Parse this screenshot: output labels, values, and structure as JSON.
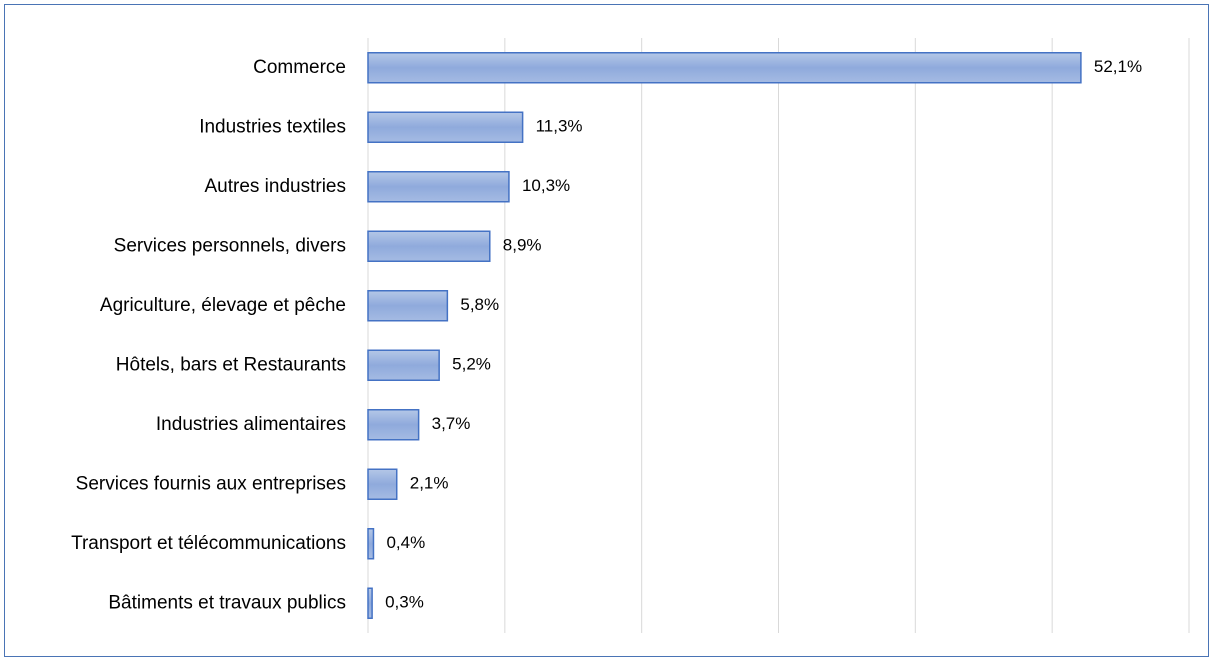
{
  "colors": {
    "bar_fill_top": "#b4c7e7",
    "bar_fill_mid": "#8faadc",
    "bar_fill_bottom": "#a5bbe3",
    "bar_stroke": "#4472c4",
    "gridline": "#d9d9d9",
    "frame_border": "#4a74b5",
    "text": "#000000"
  },
  "chart_data": {
    "type": "bar",
    "orientation": "horizontal",
    "title": "",
    "xlabel": "",
    "ylabel": "",
    "xlim": [
      0,
      60
    ],
    "grid": true,
    "legend": "none",
    "value_suffix": "%",
    "categories": [
      "Commerce",
      "Industries  textiles",
      "Autres industries",
      "Services personnels, divers",
      "Agriculture, élevage et pêche",
      "Hôtels, bars et Restaurants",
      "Industries alimentaires",
      "Services fournis aux entreprises",
      "Transport et télécommunications",
      "Bâtiments et travaux publics"
    ],
    "values": [
      52.1,
      11.3,
      10.3,
      8.9,
      5.8,
      5.2,
      3.7,
      2.1,
      0.4,
      0.3
    ],
    "value_labels": [
      "52,1%",
      "11,3%",
      "10,3%",
      "8,9%",
      "5,8%",
      "5,2%",
      "3,7%",
      "2,1%",
      "0,4%",
      "0,3%"
    ]
  }
}
